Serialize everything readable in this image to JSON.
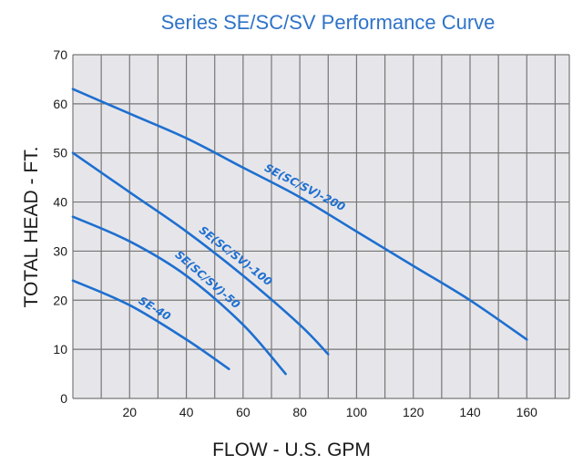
{
  "chart_data": {
    "type": "line",
    "title": "Series SE/SC/SV Performance Curve",
    "xlabel": "FLOW - U.S. GPM",
    "ylabel": "TOTAL HEAD - FT.",
    "xlim": [
      0,
      175
    ],
    "ylim": [
      0,
      70
    ],
    "xticks": [
      20,
      40,
      60,
      80,
      100,
      120,
      140,
      160
    ],
    "yticks": [
      0,
      10,
      20,
      30,
      40,
      50,
      60,
      70
    ],
    "x_gridlines": [
      0,
      10,
      20,
      30,
      40,
      50,
      60,
      70,
      80,
      90,
      100,
      110,
      120,
      130,
      140,
      150,
      160,
      170,
      175
    ],
    "y_gridlines": [
      0,
      10,
      20,
      30,
      40,
      50,
      60,
      70
    ],
    "grid": true,
    "series": [
      {
        "name": "SE(SC/SV)-200",
        "x": [
          0,
          20,
          40,
          60,
          80,
          100,
          120,
          140,
          160
        ],
        "y": [
          63,
          58,
          53,
          47,
          41,
          34,
          27,
          20,
          12
        ]
      },
      {
        "name": "SE(SC/SV)-100",
        "x": [
          0,
          20,
          40,
          60,
          80,
          90
        ],
        "y": [
          50,
          42,
          34,
          25,
          15,
          9
        ]
      },
      {
        "name": "SE(SC/SV)-50",
        "x": [
          0,
          20,
          40,
          60,
          75
        ],
        "y": [
          37,
          32,
          25,
          15,
          5
        ]
      },
      {
        "name": "SE-40",
        "x": [
          0,
          20,
          40,
          55
        ],
        "y": [
          24,
          19,
          12,
          6
        ]
      }
    ],
    "label_font_size": 12,
    "colors": {
      "curve": "#1e6fd0",
      "title": "#2f73c8",
      "grid": "#777777",
      "plot_background": "#e6e6ea"
    }
  }
}
